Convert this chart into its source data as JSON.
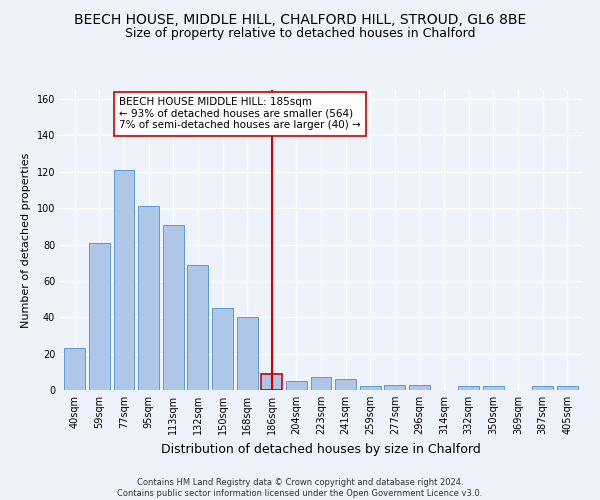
{
  "title": "BEECH HOUSE, MIDDLE HILL, CHALFORD HILL, STROUD, GL6 8BE",
  "subtitle": "Size of property relative to detached houses in Chalford",
  "xlabel": "Distribution of detached houses by size in Chalford",
  "ylabel": "Number of detached properties",
  "categories": [
    "40sqm",
    "59sqm",
    "77sqm",
    "95sqm",
    "113sqm",
    "132sqm",
    "150sqm",
    "168sqm",
    "186sqm",
    "204sqm",
    "223sqm",
    "241sqm",
    "259sqm",
    "277sqm",
    "296sqm",
    "314sqm",
    "332sqm",
    "350sqm",
    "369sqm",
    "387sqm",
    "405sqm"
  ],
  "values": [
    23,
    81,
    121,
    101,
    91,
    69,
    45,
    40,
    9,
    5,
    7,
    6,
    2,
    3,
    3,
    0,
    2,
    2,
    0,
    2,
    2
  ],
  "bar_color": "#aec6e8",
  "bar_edge_color": "#5b9bd5",
  "highlight_index": 8,
  "highlight_line_color": "#cc0000",
  "annotation_text": "BEECH HOUSE MIDDLE HILL: 185sqm\n← 93% of detached houses are smaller (564)\n7% of semi-detached houses are larger (40) →",
  "annotation_box_color": "#ffffff",
  "annotation_box_edge_color": "#cc0000",
  "ylim": [
    0,
    165
  ],
  "yticks": [
    0,
    20,
    40,
    60,
    80,
    100,
    120,
    140,
    160
  ],
  "title_fontsize": 10,
  "subtitle_fontsize": 9,
  "xlabel_fontsize": 9,
  "ylabel_fontsize": 8,
  "annotation_fontsize": 7.5,
  "tick_fontsize": 7,
  "footer_text": "Contains HM Land Registry data © Crown copyright and database right 2024.\nContains public sector information licensed under the Open Government Licence v3.0.",
  "footer_fontsize": 6,
  "background_color": "#eef2fb",
  "grid_color": "#ffffff"
}
